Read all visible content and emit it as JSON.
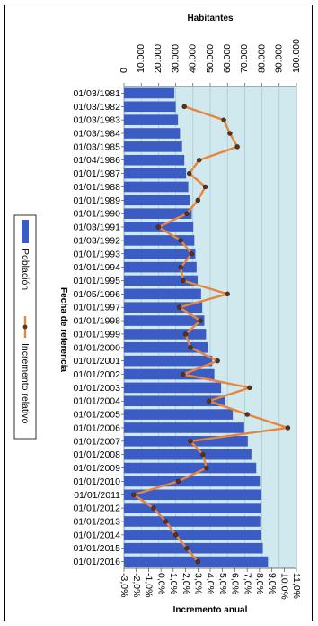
{
  "chart_data": {
    "type": "bar+line",
    "orientation": "horizontal-bars",
    "categories": [
      "01/03/1981",
      "01/03/1982",
      "01/03/1983",
      "01/03/1984",
      "01/03/1985",
      "01/04/1986",
      "01/01/1987",
      "01/01/1988",
      "01/01/1989",
      "01/01/1990",
      "01/03/1991",
      "01/03/1992",
      "01/01/1993",
      "01/01/1994",
      "01/01/1995",
      "01/05/1996",
      "01/01/1997",
      "01/01/1998",
      "01/01/1999",
      "01/01/2000",
      "01/01/2001",
      "01/01/2002",
      "01/01/2003",
      "01/01/2004",
      "01/01/2005",
      "01/01/2006",
      "01/01/2007",
      "01/01/2008",
      "01/01/2009",
      "01/01/2010",
      "01/01/2011",
      "01/01/2012",
      "01/01/2013",
      "01/01/2014",
      "01/01/2015",
      "01/01/2016"
    ],
    "series": [
      {
        "name": "Población",
        "axis": "Habitantes",
        "color": "#3b5cc4",
        "values": [
          29200,
          30000,
          31300,
          32500,
          33700,
          35000,
          36000,
          37300,
          38300,
          39300,
          40200,
          40800,
          41400,
          42100,
          42700,
          44700,
          45400,
          46600,
          47600,
          48600,
          51200,
          52400,
          56300,
          58800,
          63100,
          69700,
          71800,
          73900,
          76700,
          78800,
          79700,
          79200,
          79000,
          79200,
          80500,
          83500
        ]
      },
      {
        "name": "Incremento relativo",
        "axis": "Incremento anual",
        "color": "#e8853a",
        "values": [
          null,
          1.9,
          5.1,
          5.6,
          6.2,
          3.1,
          2.3,
          3.6,
          3.0,
          2.1,
          -0.2,
          1.6,
          2.5,
          1.6,
          1.8,
          5.4,
          1.5,
          3.2,
          2.0,
          2.4,
          4.6,
          1.8,
          7.2,
          3.9,
          7.0,
          10.3,
          2.4,
          3.4,
          3.7,
          1.4,
          -2.2,
          -0.6,
          0.4,
          1.2,
          2.1,
          3.0
        ]
      }
    ],
    "habitantes_axis": {
      "title": "Habitantes",
      "ticks": [
        "0",
        "10.000",
        "20.000",
        "30.000",
        "40.000",
        "50.000",
        "60.000",
        "70.000",
        "80.000",
        "90.000",
        "100.000"
      ],
      "range": [
        0,
        100000
      ]
    },
    "incremento_axis": {
      "title": "Incremento anual",
      "ticks": [
        "-3,0%",
        "-2,0%",
        "-1,0%",
        "0,0%",
        "1,0%",
        "2,0%",
        "3,0%",
        "4,0%",
        "5,0%",
        "6,0%",
        "7,0%",
        "8,0%",
        "9,0%",
        "10,0%",
        "11,0%"
      ],
      "range": [
        -3,
        11
      ]
    },
    "category_axis_title": "Fecha de referencia",
    "legend": {
      "placement": "left",
      "items": [
        {
          "label": "Población",
          "icon": "bar-swatch"
        },
        {
          "label": "Incremento relativo",
          "icon": "line-marker"
        }
      ]
    },
    "plot_background": "#cfe9ef",
    "grid": true
  }
}
